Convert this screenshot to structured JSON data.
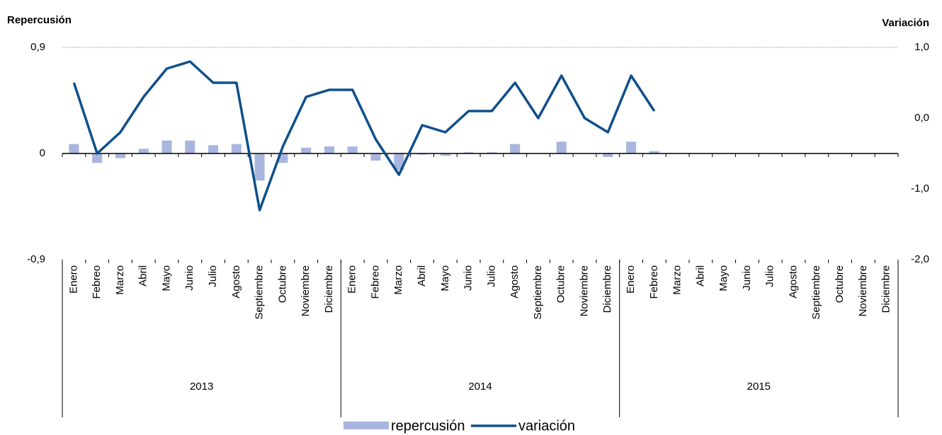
{
  "chart_data": {
    "type": "bar",
    "y_title": "Repercusión",
    "y2_title": "Variación",
    "categories": [
      "Enero",
      "Febreo",
      "Marzo",
      "Abril",
      "Mayo",
      "Junio",
      "Julio",
      "Agosto",
      "Septiembre",
      "Octubre",
      "Noviembre",
      "Diciembre",
      "Enero",
      "Febreo",
      "Marzo",
      "Abril",
      "Mayo",
      "Junio",
      "Julio",
      "Agosto",
      "Septiembre",
      "Octubre",
      "Noviembre",
      "Diciembre",
      "Enero",
      "Febreo",
      "Marzo",
      "Abril",
      "Mayo",
      "Junio",
      "Julio",
      "Agosto",
      "Septiembre",
      "Octubre",
      "Noviembre",
      "Diciembre"
    ],
    "years": [
      "2013",
      "2014",
      "2015"
    ],
    "series": [
      {
        "name": "repercusión",
        "type": "bar",
        "color": "#a9b5de",
        "values": [
          0.08,
          -0.08,
          -0.04,
          0.04,
          0.11,
          0.11,
          0.07,
          0.08,
          -0.23,
          -0.08,
          0.05,
          0.06,
          0.06,
          -0.06,
          -0.14,
          -0.01,
          -0.02,
          0.01,
          0.01,
          0.08,
          0,
          0.1,
          0,
          -0.03,
          0.1,
          0.02,
          null,
          null,
          null,
          null,
          null,
          null,
          null,
          null,
          null,
          null
        ]
      },
      {
        "name": "variación",
        "type": "line",
        "axis": "y2",
        "color": "#0f4f8c",
        "values": [
          0.5,
          -0.5,
          -0.2,
          0.3,
          0.7,
          0.8,
          0.5,
          0.5,
          -1.3,
          -0.4,
          0.3,
          0.4,
          0.4,
          -0.3,
          -0.8,
          -0.1,
          -0.2,
          0.1,
          0.1,
          0.5,
          0,
          0.6,
          0,
          -0.2,
          0.6,
          0.1,
          null,
          null,
          null,
          null,
          null,
          null,
          null,
          null,
          null,
          null
        ]
      }
    ],
    "ylim": [
      -0.9,
      0.9
    ],
    "yticks": [
      {
        "value": -0.9,
        "label": "-0,9"
      },
      0,
      {
        "value": 0.9,
        "label": "0,9"
      }
    ],
    "y2lim": [
      -2,
      1
    ],
    "y2ticks": [
      {
        "value": -2,
        "label": "-2,0"
      },
      {
        "value": -1,
        "label": "-1,0"
      },
      {
        "value": 0,
        "label": "0,0"
      },
      {
        "value": 1,
        "label": "1,0"
      }
    ]
  }
}
